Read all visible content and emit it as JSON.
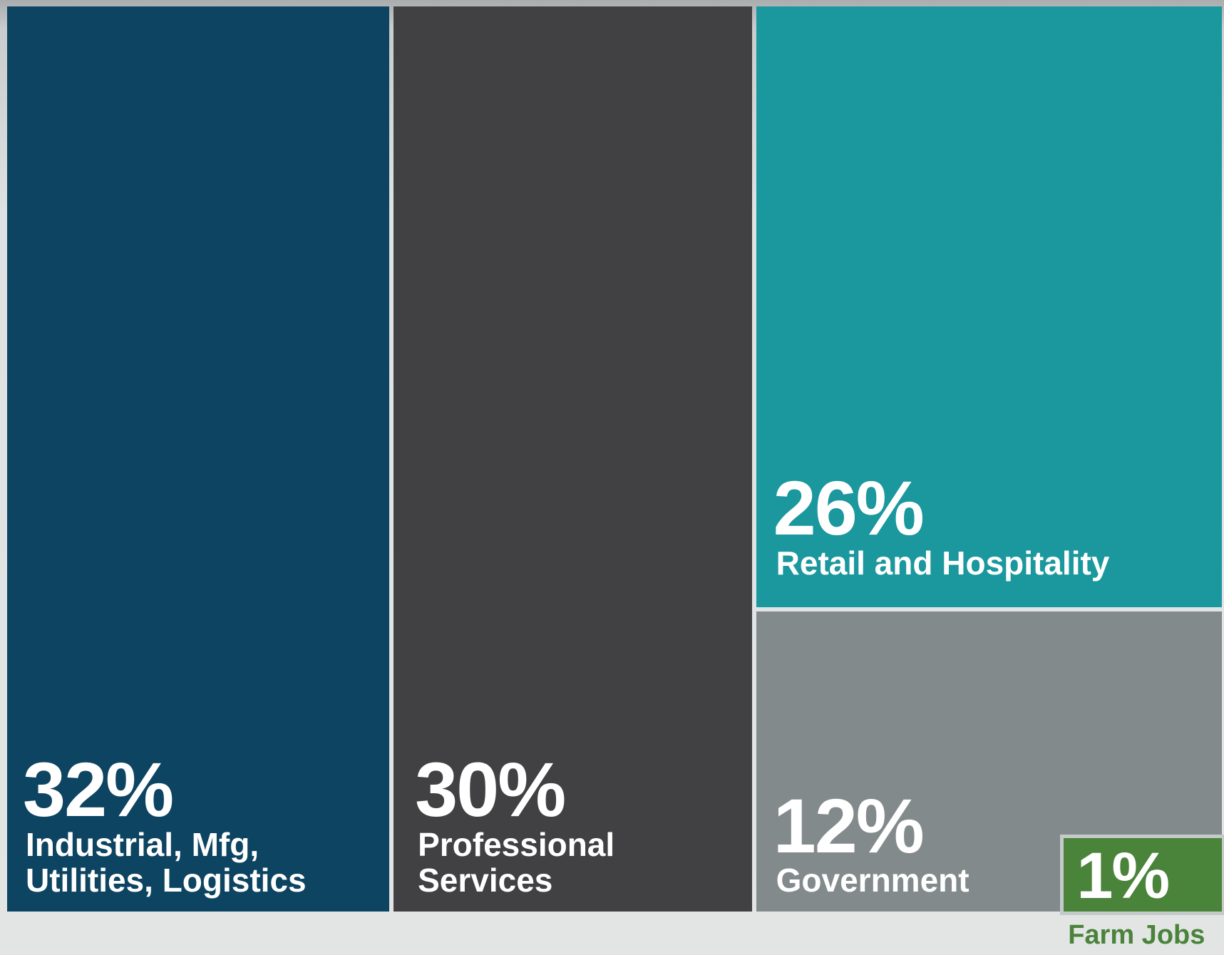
{
  "chart_data": {
    "type": "treemap",
    "categories": [
      "Industrial, Mfg, Utilities, Logistics",
      "Professional Services",
      "Retail and Hospitality",
      "Government",
      "Farm Jobs"
    ],
    "values": [
      32,
      30,
      26,
      12,
      1
    ],
    "value_labels": [
      "32%",
      "30%",
      "26%",
      "12%",
      "1%"
    ],
    "colors": [
      "#0d4461",
      "#414042",
      "#1b979e",
      "#828a8b",
      "#4a833a"
    ]
  }
}
